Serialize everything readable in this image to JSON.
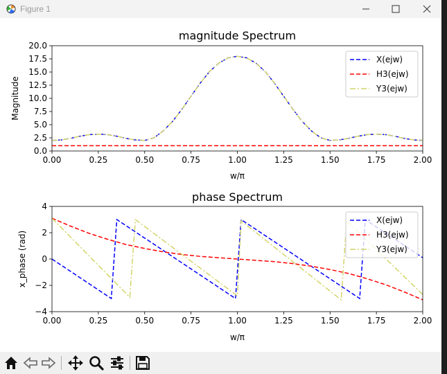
{
  "window": {
    "title": "Figure 1",
    "icons": [
      "app-icon",
      "minimize-icon",
      "maximize-icon",
      "close-icon"
    ]
  },
  "toolbar": {
    "buttons": [
      {
        "name": "home-icon"
      },
      {
        "name": "back-icon"
      },
      {
        "name": "forward-icon"
      },
      {
        "name": "pan-icon"
      },
      {
        "name": "zoom-icon"
      },
      {
        "name": "configure-subplots-icon"
      },
      {
        "name": "save-icon"
      }
    ]
  },
  "colors": {
    "x_series": "#0000ff",
    "h_series": "#ff0000",
    "y_series": "#d4d46a",
    "toolbar_bg": "#f0f0f0",
    "titlebar_bg": "#f3f3f3"
  },
  "chart_data": [
    {
      "type": "line",
      "title": "magnitude Spectrum",
      "xlabel": "w/π",
      "ylabel": "Magnitude",
      "xlim": [
        0,
        2
      ],
      "ylim": [
        0,
        20
      ],
      "xticks": [
        "0.00",
        "0.25",
        "0.50",
        "0.75",
        "1.00",
        "1.25",
        "1.50",
        "1.75",
        "2.00"
      ],
      "yticks": [
        "0.0",
        "2.5",
        "5.0",
        "7.5",
        "10.0",
        "12.5",
        "15.0",
        "17.5",
        "20.0"
      ],
      "legend": "top-right",
      "grid": false,
      "series": [
        {
          "name": "X(ejw)",
          "style": "dashed",
          "color": "#0000ff",
          "x": [
            0,
            0.05,
            0.1,
            0.15,
            0.2,
            0.25,
            0.3,
            0.35,
            0.4,
            0.45,
            0.5,
            0.55,
            0.6,
            0.65,
            0.7,
            0.75,
            0.8,
            0.85,
            0.9,
            0.95,
            1.0,
            1.05,
            1.1,
            1.15,
            1.2,
            1.25,
            1.3,
            1.35,
            1.4,
            1.45,
            1.5,
            1.55,
            1.6,
            1.65,
            1.7,
            1.75,
            1.8,
            1.85,
            1.9,
            1.95,
            2.0
          ],
          "y": [
            2.0,
            2.1,
            2.4,
            2.8,
            3.1,
            3.2,
            3.1,
            2.8,
            2.4,
            2.1,
            2.0,
            2.5,
            3.8,
            5.6,
            7.9,
            10.4,
            12.9,
            15.1,
            16.7,
            17.7,
            18.0,
            17.7,
            16.7,
            15.1,
            12.9,
            10.4,
            7.9,
            5.6,
            3.8,
            2.5,
            2.0,
            2.1,
            2.4,
            2.8,
            3.1,
            3.2,
            3.1,
            2.8,
            2.4,
            2.1,
            2.0
          ]
        },
        {
          "name": "H3(ejw)",
          "style": "dashed",
          "color": "#ff0000",
          "x": [
            0,
            2
          ],
          "y": [
            1.0,
            1.0
          ]
        },
        {
          "name": "Y3(ejw)",
          "style": "dashdot",
          "color": "#d4d46a",
          "x": [
            0,
            0.05,
            0.1,
            0.15,
            0.2,
            0.25,
            0.3,
            0.35,
            0.4,
            0.45,
            0.5,
            0.55,
            0.6,
            0.65,
            0.7,
            0.75,
            0.8,
            0.85,
            0.9,
            0.95,
            1.0,
            1.05,
            1.1,
            1.15,
            1.2,
            1.25,
            1.3,
            1.35,
            1.4,
            1.45,
            1.5,
            1.55,
            1.6,
            1.65,
            1.7,
            1.75,
            1.8,
            1.85,
            1.9,
            1.95,
            2.0
          ],
          "y": [
            2.0,
            2.1,
            2.4,
            2.8,
            3.1,
            3.2,
            3.1,
            2.8,
            2.4,
            2.1,
            2.0,
            2.5,
            3.8,
            5.6,
            7.9,
            10.4,
            12.9,
            15.1,
            16.7,
            17.7,
            18.0,
            17.7,
            16.7,
            15.1,
            12.9,
            10.4,
            7.9,
            5.6,
            3.8,
            2.5,
            2.0,
            2.1,
            2.4,
            2.8,
            3.1,
            3.2,
            3.1,
            2.8,
            2.4,
            2.1,
            2.0
          ]
        }
      ]
    },
    {
      "type": "line",
      "title": "phase Spectrum",
      "xlabel": "w/π",
      "ylabel": "x_phase (rad)",
      "xlim": [
        0,
        2
      ],
      "ylim": [
        -4,
        4
      ],
      "xticks": [
        "0.00",
        "0.25",
        "0.50",
        "0.75",
        "1.00",
        "1.25",
        "1.50",
        "1.75",
        "2.00"
      ],
      "yticks": [
        "−4",
        "−2",
        "0",
        "2",
        "4"
      ],
      "legend": "top-right",
      "grid": false,
      "series": [
        {
          "name": "X(ejw)",
          "style": "dashed",
          "color": "#0000ff",
          "x": [
            0,
            0.32,
            0.35,
            0.99,
            1.02,
            1.66,
            1.69,
            2.0
          ],
          "y": [
            0.0,
            -3.0,
            3.0,
            -3.0,
            3.0,
            -3.0,
            3.0,
            0.1
          ]
        },
        {
          "name": "H3(ejw)",
          "style": "dashed",
          "color": "#ff0000",
          "x": [
            0,
            0.1,
            0.2,
            0.3,
            0.4,
            0.5,
            0.6,
            0.7,
            0.8,
            0.9,
            1.0,
            1.1,
            1.2,
            1.3,
            1.4,
            1.5,
            1.6,
            1.7,
            1.8,
            1.9,
            2.0
          ],
          "y": [
            3.1,
            2.5,
            1.95,
            1.5,
            1.1,
            0.8,
            0.55,
            0.35,
            0.2,
            0.1,
            0.0,
            -0.1,
            -0.2,
            -0.35,
            -0.55,
            -0.8,
            -1.1,
            -1.5,
            -1.95,
            -2.5,
            -3.1
          ]
        },
        {
          "name": "Y3(ejw)",
          "style": "dashdot",
          "color": "#d4d46a",
          "x": [
            0,
            0.42,
            0.45,
            1.0,
            1.02,
            1.56,
            1.59,
            2.0
          ],
          "y": [
            3.1,
            -2.9,
            3.0,
            -2.8,
            2.9,
            -3.1,
            2.9,
            -2.7
          ]
        }
      ]
    }
  ]
}
